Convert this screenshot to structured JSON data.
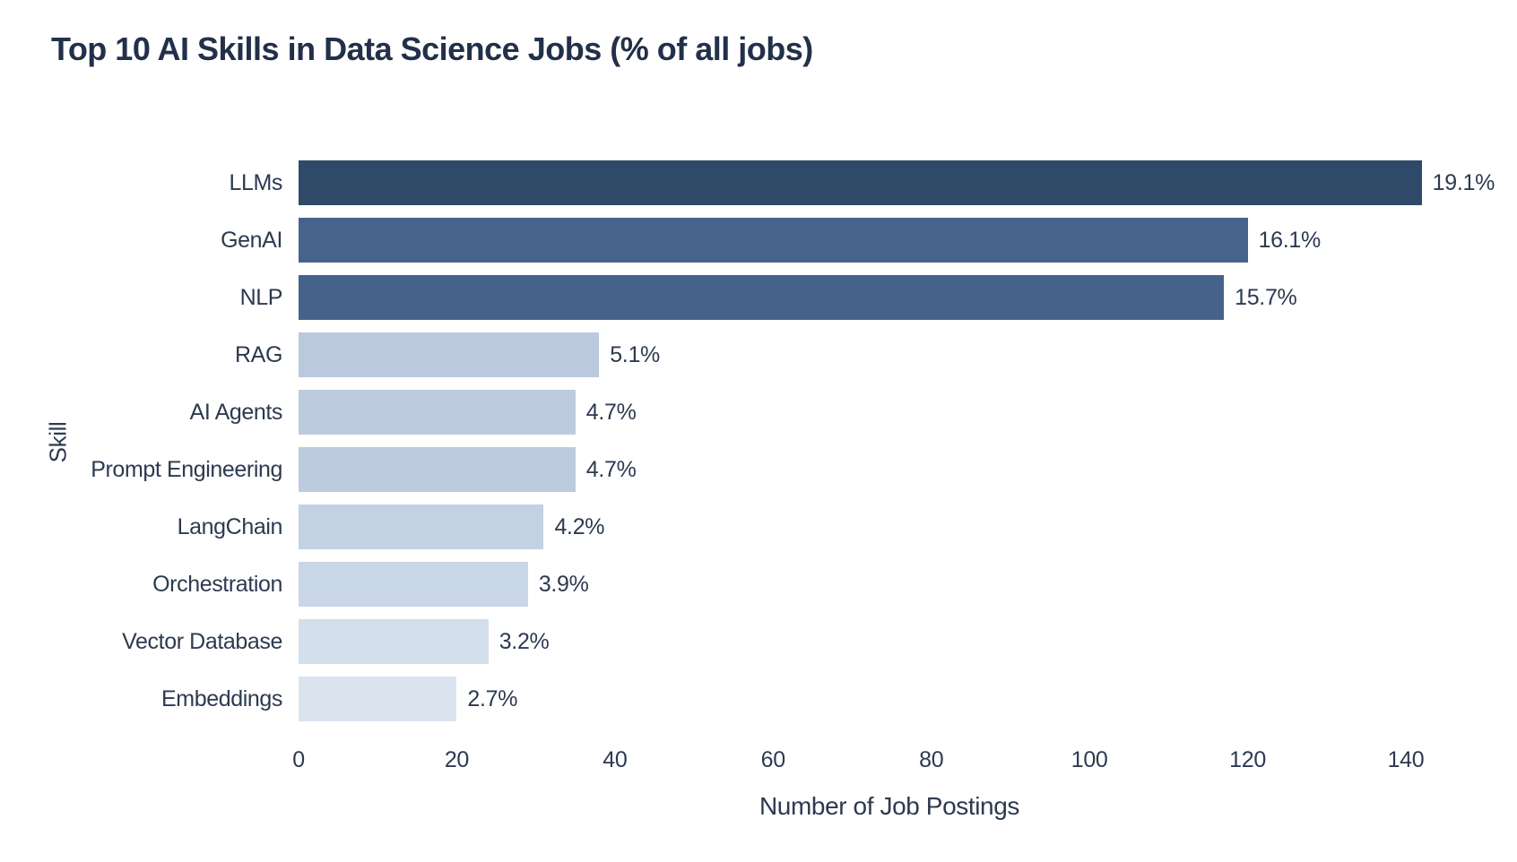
{
  "title": "Top 10 AI Skills in Data Science Jobs (% of all jobs)",
  "chart_data": {
    "type": "bar",
    "orientation": "horizontal",
    "title": "Top 10 AI Skills in Data Science Jobs (% of all jobs)",
    "xlabel": "Number of Job Postings",
    "ylabel": "Skill",
    "categories": [
      "LLMs",
      "GenAI",
      "NLP",
      "RAG",
      "AI Agents",
      "Prompt Engineering",
      "LangChain",
      "Orchestration",
      "Vector Database",
      "Embeddings"
    ],
    "values": [
      142,
      120,
      117,
      38,
      35,
      35,
      31,
      29,
      24,
      20
    ],
    "value_labels": [
      "19.1%",
      "16.1%",
      "15.7%",
      "5.1%",
      "4.7%",
      "4.7%",
      "4.2%",
      "3.9%",
      "3.2%",
      "2.7%"
    ],
    "bar_colors": [
      "#2e4a68",
      "#46648b",
      "#45638a",
      "#bac9dd",
      "#bccbde",
      "#bccbde",
      "#c3d1e2",
      "#c9d7e6",
      "#d3dfeb",
      "#dae4ef"
    ],
    "xticks": [
      0,
      20,
      40,
      60,
      80,
      100,
      120,
      140
    ],
    "xlim": [
      0,
      150
    ],
    "grid": false,
    "legend": false,
    "background": "#ffffff",
    "title_color": "#223049",
    "text_color": "#2c3a50"
  }
}
